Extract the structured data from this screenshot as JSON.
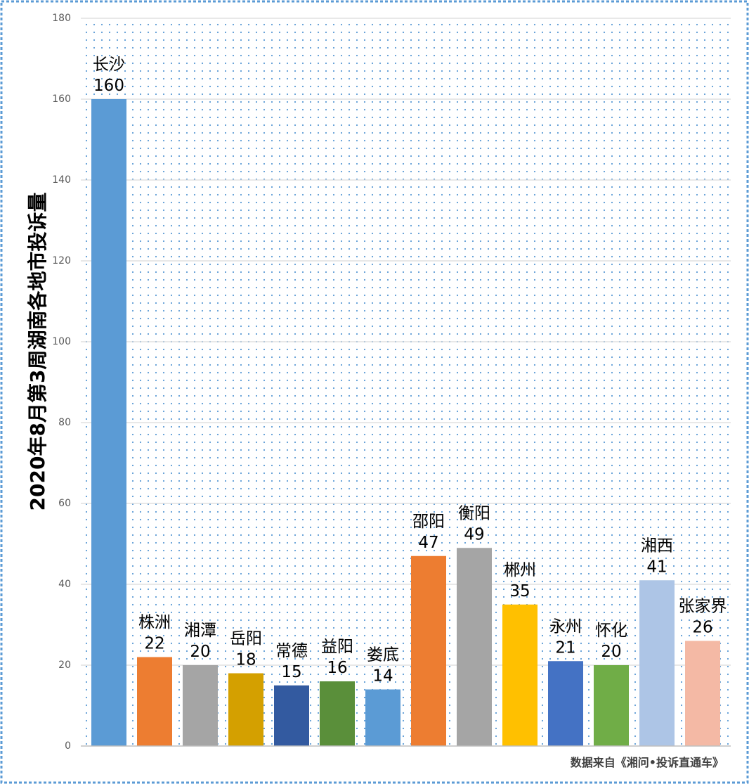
{
  "chart_data": {
    "type": "bar",
    "title": "",
    "xlabel": "",
    "ylabel": "2020年8月第3周湖南各地市投诉量",
    "ylim": [
      0,
      180
    ],
    "yticks": [
      0,
      20,
      40,
      60,
      80,
      100,
      120,
      140,
      160,
      180
    ],
    "grid": true,
    "categories": [
      "长沙",
      "株洲",
      "湘潭",
      "岳阳",
      "常德",
      "益阳",
      "娄底",
      "邵阳",
      "衡阳",
      "郴州",
      "永州",
      "怀化",
      "湘西",
      "张家界"
    ],
    "values": [
      160,
      22,
      20,
      18,
      15,
      16,
      14,
      47,
      49,
      35,
      21,
      20,
      41,
      26
    ],
    "colors": [
      "#5b9bd5",
      "#ed7d31",
      "#a5a5a5",
      "#d4a000",
      "#335aa0",
      "#5a8f3a",
      "#5b9bd5",
      "#ed7d31",
      "#a5a5a5",
      "#ffc000",
      "#4472c4",
      "#70ad47",
      "#adc5e6",
      "#f4b9a5"
    ],
    "source": "数据来自《湘问•投诉直通车》"
  }
}
